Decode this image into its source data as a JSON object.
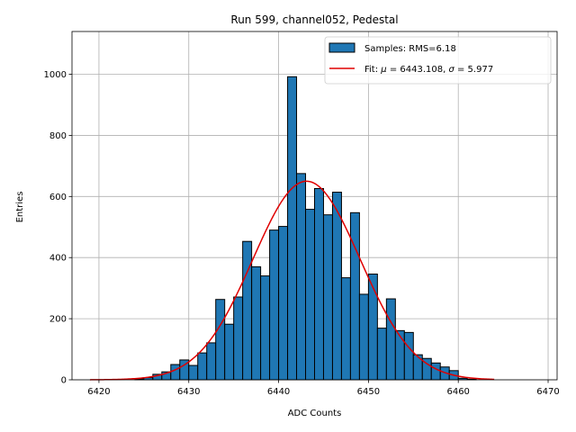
{
  "chart_data": {
    "type": "histogram",
    "title": "Run 599, channel052, Pedestal",
    "xlabel": "ADC Counts",
    "ylabel": "Entries",
    "xlim": [
      6417,
      6471
    ],
    "ylim": [
      0,
      1140
    ],
    "xticks": [
      6420,
      6430,
      6440,
      6450,
      6460,
      6470
    ],
    "yticks": [
      0,
      200,
      400,
      600,
      800,
      1000
    ],
    "grid": true,
    "legend_position": "top-right",
    "bar_color": "#1f77b4",
    "fit_color": "#e00000",
    "histogram": {
      "name": "Samples: RMS=6.18",
      "bin_edges": [
        6424,
        6425,
        6426,
        6427,
        6428,
        6429,
        6430,
        6431,
        6432,
        6433,
        6434,
        6435,
        6436,
        6437,
        6438,
        6439,
        6440,
        6441,
        6442,
        6443,
        6444,
        6445,
        6446,
        6447,
        6448,
        6449,
        6450,
        6451,
        6452,
        6453,
        6454,
        6455,
        6456,
        6457,
        6458,
        6459,
        6460,
        6461,
        6462
      ],
      "counts": [
        3,
        7,
        18,
        26,
        50,
        65,
        47,
        88,
        121,
        263,
        182,
        271,
        453,
        370,
        340,
        490,
        502,
        992,
        675,
        558,
        626,
        540,
        614,
        334,
        547,
        280,
        346,
        169,
        265,
        161,
        155,
        82,
        70,
        55,
        42,
        30,
        5,
        2
      ]
    },
    "fit": {
      "name_prefix": "Fit: ",
      "mu_symbol": "μ",
      "mu_text": " = 6443.108, ",
      "sigma_symbol": "σ",
      "sigma_text": " = 5.977",
      "mu": 6443.108,
      "sigma": 5.977,
      "amplitude": 650,
      "x_range": [
        6419,
        6464
      ]
    }
  }
}
